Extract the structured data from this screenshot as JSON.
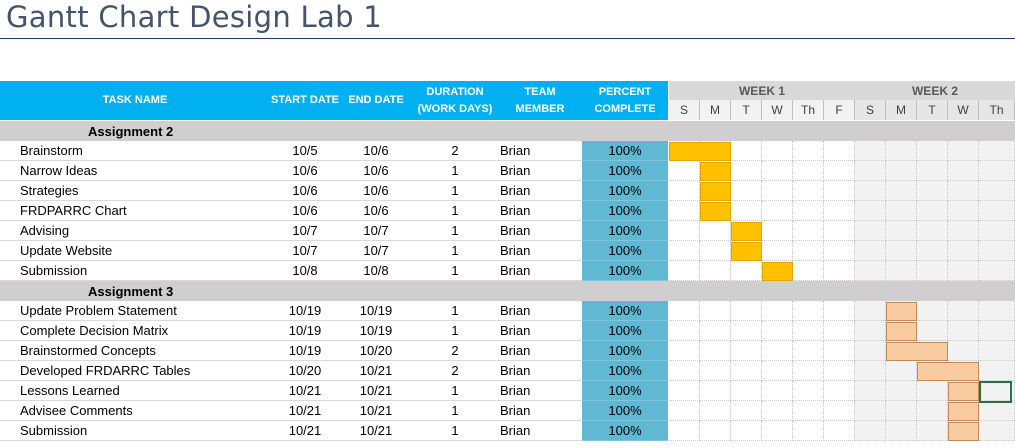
{
  "title": "Gantt Chart Design Lab 1",
  "colors": {
    "header": "#00b0f0",
    "percent": "#60b8d3",
    "bar_week1": "#ffc000",
    "bar_week2": "#f8cba0",
    "section": "#d0cece"
  },
  "headers": {
    "task": "TASK NAME",
    "start": "START DATE",
    "end": "END DATE",
    "duration_1": "DURATION",
    "duration_2": "(WORK DAYS)",
    "team_1": "TEAM",
    "team_2": "MEMBER",
    "percent_1": "PERCENT",
    "percent_2": "COMPLETE"
  },
  "weeks": [
    "WEEK 1",
    "WEEK 2"
  ],
  "days": [
    "S",
    "M",
    "T",
    "W",
    "Th",
    "F",
    "S",
    "M",
    "T",
    "W",
    "Th"
  ],
  "sections": [
    {
      "name": "Assignment 2",
      "tasks": [
        {
          "name": "Brainstorm",
          "start": "10/5",
          "end": "10/6",
          "duration": "2",
          "member": "Brian",
          "percent": "100%",
          "bar": {
            "week": 1,
            "start": 0,
            "span": 2
          }
        },
        {
          "name": "Narrow Ideas",
          "start": "10/6",
          "end": "10/6",
          "duration": "1",
          "member": "Brian",
          "percent": "100%",
          "bar": {
            "week": 1,
            "start": 1,
            "span": 1
          }
        },
        {
          "name": "Strategies",
          "start": "10/6",
          "end": "10/6",
          "duration": "1",
          "member": "Brian",
          "percent": "100%",
          "bar": {
            "week": 1,
            "start": 1,
            "span": 1
          }
        },
        {
          "name": "FRDPARRC Chart",
          "start": "10/6",
          "end": "10/6",
          "duration": "1",
          "member": "Brian",
          "percent": "100%",
          "bar": {
            "week": 1,
            "start": 1,
            "span": 1
          }
        },
        {
          "name": "Advising",
          "start": "10/7",
          "end": "10/7",
          "duration": "1",
          "member": "Brian",
          "percent": "100%",
          "bar": {
            "week": 1,
            "start": 2,
            "span": 1
          }
        },
        {
          "name": "Update Website",
          "start": "10/7",
          "end": "10/7",
          "duration": "1",
          "member": "Brian",
          "percent": "100%",
          "bar": {
            "week": 1,
            "start": 2,
            "span": 1
          }
        },
        {
          "name": "Submission",
          "start": "10/8",
          "end": "10/8",
          "duration": "1",
          "member": "Brian",
          "percent": "100%",
          "bar": {
            "week": 1,
            "start": 3,
            "span": 1
          }
        }
      ]
    },
    {
      "name": "Assignment 3",
      "tasks": [
        {
          "name": "Update Problem Statement",
          "start": "10/19",
          "end": "10/19",
          "duration": "1",
          "member": "Brian",
          "percent": "100%",
          "bar": {
            "week": 2,
            "start": 7,
            "span": 1
          }
        },
        {
          "name": "Complete Decision Matrix",
          "start": "10/19",
          "end": "10/19",
          "duration": "1",
          "member": "Brian",
          "percent": "100%",
          "bar": {
            "week": 2,
            "start": 7,
            "span": 1
          }
        },
        {
          "name": "Brainstormed Concepts",
          "start": "10/19",
          "end": "10/20",
          "duration": "2",
          "member": "Brian",
          "percent": "100%",
          "bar": {
            "week": 2,
            "start": 7,
            "span": 2
          }
        },
        {
          "name": "Developed FRDARRC Tables",
          "start": "10/20",
          "end": "10/21",
          "duration": "2",
          "member": "Brian",
          "percent": "100%",
          "bar": {
            "week": 2,
            "start": 8,
            "span": 2
          }
        },
        {
          "name": "Lessons Learned",
          "start": "10/21",
          "end": "10/21",
          "duration": "1",
          "member": "Brian",
          "percent": "100%",
          "bar": {
            "week": 2,
            "start": 9,
            "span": 1
          }
        },
        {
          "name": "Advisee Comments",
          "start": "10/21",
          "end": "10/21",
          "duration": "1",
          "member": "Brian",
          "percent": "100%",
          "bar": {
            "week": 2,
            "start": 9,
            "span": 1
          }
        },
        {
          "name": "Submission",
          "start": "10/21",
          "end": "10/21",
          "duration": "1",
          "member": "Brian",
          "percent": "100%",
          "bar": {
            "week": 2,
            "start": 9,
            "span": 1
          }
        }
      ]
    }
  ]
}
